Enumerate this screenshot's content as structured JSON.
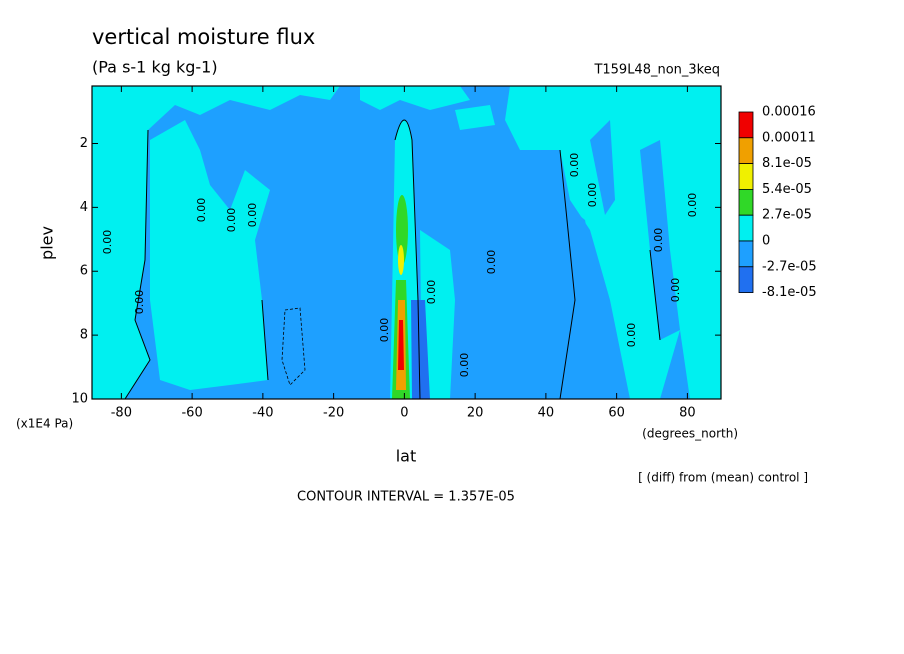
{
  "chart_data": {
    "type": "contour",
    "title": "vertical moisture flux",
    "subtitle": "(Pa s-1 kg kg-1)",
    "run_label": "T159L48_non_3keq",
    "x_label": "lat",
    "x_unit": "(degrees_north)",
    "y_label": "plev",
    "y_unit": "(x1E4 Pa)",
    "note": "[ (diff) from (mean) control ]",
    "contour_interval": "CONTOUR INTERVAL = 1.357E-05",
    "contour_label": "0.00",
    "xlim": [
      -88.3,
      89.5
    ],
    "xticks": [
      -80,
      -60,
      -40,
      -20,
      0,
      20,
      40,
      60,
      80
    ],
    "ylim": [
      10,
      0.2
    ],
    "yticks": [
      2,
      4,
      6,
      8,
      10
    ],
    "levels": [
      0.00016,
      0.00011,
      {
        "value": 8.1e-05,
        "label": "8.1e-05"
      },
      {
        "value": 5.4e-05,
        "label": "5.4e-05"
      },
      {
        "value": 2.7e-05,
        "label": "2.7e-05"
      },
      0,
      {
        "value": -2.7e-05,
        "label": "-2.7e-05"
      },
      {
        "value": -8.1e-05,
        "label": "-8.1e-05"
      }
    ],
    "colors": [
      "#f00000",
      "#f0a000",
      "#f0f000",
      "#30d828",
      "#00f0f0",
      "#1ea0ff",
      "#2070f0"
    ]
  }
}
